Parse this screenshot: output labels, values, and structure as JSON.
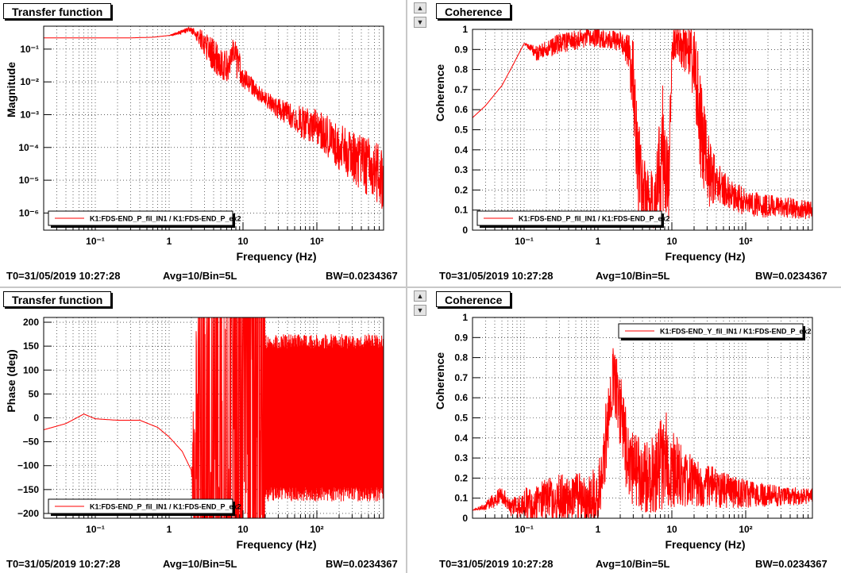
{
  "panels": [
    {
      "title": "Transfer function",
      "t0": "T0=31/05/2019 10:27:28",
      "avg": "Avg=10/Bin=5L",
      "bw": "BW=0.0234367"
    },
    {
      "title": "Coherence",
      "t0": "T0=31/05/2019 10:27:28",
      "avg": "Avg=10/Bin=5L",
      "bw": "BW=0.0234367"
    },
    {
      "title": "Transfer function",
      "t0": "T0=31/05/2019 10:27:28",
      "avg": "Avg=10/Bin=5L",
      "bw": "BW=0.0234367"
    },
    {
      "title": "Coherence",
      "t0": "T0=31/05/2019 10:27:28",
      "avg": "Avg=10/Bin=5L",
      "bw": "BW=0.0234367"
    }
  ],
  "chart_data": [
    {
      "type": "line",
      "title": "Transfer function",
      "xlabel": "Frequency (Hz)",
      "ylabel": "Magnitude",
      "xscale": "log",
      "yscale": "log",
      "xlim": [
        0.02,
        800
      ],
      "ylim": [
        3e-07,
        0.5
      ],
      "grid": true,
      "legend_position": "bottom-left",
      "line_color": "#ff0000",
      "xticks": [
        {
          "value": 0.1,
          "label": "10⁻¹"
        },
        {
          "value": 1,
          "label": "1"
        },
        {
          "value": 10,
          "label": "10"
        },
        {
          "value": 100,
          "label": "10²"
        }
      ],
      "yticks": [
        {
          "value": 1e-06,
          "label": "10⁻⁶"
        },
        {
          "value": 1e-05,
          "label": "10⁻⁵"
        },
        {
          "value": 0.0001,
          "label": "10⁻⁴"
        },
        {
          "value": 0.001,
          "label": "10⁻³"
        },
        {
          "value": 0.01,
          "label": "10⁻²"
        },
        {
          "value": 0.1,
          "label": "10⁻¹"
        }
      ],
      "series": [
        {
          "name": "K1:FDS-END_P_fil_IN1 / K1:FDS-END_P_ex2",
          "x": [
            0.02,
            0.05,
            0.1,
            0.3,
            0.6,
            1.0,
            1.5,
            1.9,
            2.3,
            3.0,
            4.0,
            5.0,
            6.0,
            7.5,
            8.5,
            10,
            15,
            20,
            30,
            50,
            70,
            100,
            150,
            200,
            300,
            500,
            800
          ],
          "values": [
            0.22,
            0.22,
            0.22,
            0.22,
            0.23,
            0.26,
            0.33,
            0.4,
            0.28,
            0.15,
            0.06,
            0.035,
            0.03,
            0.06,
            0.035,
            0.013,
            0.005,
            0.003,
            0.0015,
            0.0008,
            0.0005,
            0.0004,
            0.00018,
            0.0001,
            5e-05,
            2.5e-05,
            1e-05
          ],
          "noise": [
            0,
            0,
            0,
            0,
            0,
            0,
            0.05,
            0.05,
            0.1,
            0.25,
            0.35,
            0.3,
            0.3,
            0.35,
            0.35,
            0.2,
            0.15,
            0.15,
            0.2,
            0.25,
            0.35,
            0.35,
            0.4,
            0.45,
            0.5,
            0.6,
            0.6
          ]
        }
      ]
    },
    {
      "type": "line",
      "title": "Coherence",
      "xlabel": "Frequency (Hz)",
      "ylabel": "Coherence",
      "xscale": "log",
      "yscale": "linear",
      "xlim": [
        0.02,
        800
      ],
      "ylim": [
        0,
        1
      ],
      "grid": true,
      "legend_position": "bottom-left",
      "line_color": "#ff0000",
      "xticks": [
        {
          "value": 0.1,
          "label": "10⁻¹"
        },
        {
          "value": 1,
          "label": "1"
        },
        {
          "value": 10,
          "label": "10"
        },
        {
          "value": 100,
          "label": "10²"
        }
      ],
      "yticks": [
        {
          "value": 0,
          "label": "0"
        },
        {
          "value": 0.1,
          "label": "0.1"
        },
        {
          "value": 0.2,
          "label": "0.2"
        },
        {
          "value": 0.3,
          "label": "0.3"
        },
        {
          "value": 0.4,
          "label": "0.4"
        },
        {
          "value": 0.5,
          "label": "0.5"
        },
        {
          "value": 0.6,
          "label": "0.6"
        },
        {
          "value": 0.7,
          "label": "0.7"
        },
        {
          "value": 0.8,
          "label": "0.8"
        },
        {
          "value": 0.9,
          "label": "0.9"
        },
        {
          "value": 1,
          "label": "1"
        }
      ],
      "series": [
        {
          "name": "K1:FDS-END_P_fil_IN1 / K1:FDS-END_P_ex2",
          "x": [
            0.02,
            0.03,
            0.05,
            0.07,
            0.1,
            0.15,
            0.3,
            0.6,
            1.0,
            1.5,
            2.0,
            2.5,
            3.0,
            3.5,
            4.5,
            6.0,
            7.5,
            9.0,
            10,
            13,
            17,
            20,
            25,
            30,
            40,
            60,
            100,
            200,
            400,
            800
          ],
          "values": [
            0.56,
            0.62,
            0.72,
            0.82,
            0.93,
            0.88,
            0.93,
            0.95,
            0.96,
            0.95,
            0.94,
            0.9,
            0.75,
            0.3,
            0.15,
            0.15,
            0.4,
            0.2,
            0.9,
            0.92,
            0.9,
            0.8,
            0.5,
            0.3,
            0.25,
            0.18,
            0.14,
            0.12,
            0.11,
            0.1
          ],
          "noise": [
            0,
            0,
            0,
            0,
            0,
            0.04,
            0.05,
            0.05,
            0.05,
            0.05,
            0.05,
            0.08,
            0.2,
            0.25,
            0.15,
            0.15,
            0.35,
            0.2,
            0.1,
            0.1,
            0.15,
            0.2,
            0.3,
            0.2,
            0.1,
            0.08,
            0.07,
            0.06,
            0.05,
            0.05
          ]
        }
      ]
    },
    {
      "type": "line",
      "title": "Transfer function",
      "xlabel": "Frequency (Hz)",
      "ylabel": "Phase (deg)",
      "xscale": "log",
      "yscale": "linear",
      "xlim": [
        0.02,
        800
      ],
      "ylim": [
        -210,
        210
      ],
      "grid": true,
      "legend_position": "bottom-left",
      "line_color": "#ff0000",
      "xticks": [
        {
          "value": 0.1,
          "label": "10⁻¹"
        },
        {
          "value": 1,
          "label": "1"
        },
        {
          "value": 10,
          "label": "10"
        },
        {
          "value": 100,
          "label": "10²"
        }
      ],
      "yticks": [
        {
          "value": -200,
          "label": "−200"
        },
        {
          "value": -150,
          "label": "−150"
        },
        {
          "value": -100,
          "label": "−100"
        },
        {
          "value": -50,
          "label": "−50"
        },
        {
          "value": 0,
          "label": "0"
        },
        {
          "value": 50,
          "label": "50"
        },
        {
          "value": 100,
          "label": "100"
        },
        {
          "value": 150,
          "label": "150"
        },
        {
          "value": 200,
          "label": "200"
        }
      ],
      "series": [
        {
          "name": "K1:FDS-END_P_fil_IN1 / K1:FDS-END_P_ex2",
          "x": [
            0.02,
            0.04,
            0.07,
            0.1,
            0.2,
            0.4,
            0.7,
            1.0,
            1.5,
            2.0,
            2.5,
            3.0,
            5.0,
            8.0,
            9.5,
            10,
            12,
            20,
            50,
            100,
            300,
            800
          ],
          "values": [
            -25,
            -12,
            8,
            -2,
            -5,
            -5,
            -20,
            -40,
            -70,
            -110,
            -140,
            -150,
            -150,
            -150,
            -160,
            170,
            170,
            160,
            150,
            140,
            140,
            140
          ],
          "noise": [
            0,
            0,
            0,
            0,
            0,
            0,
            0,
            0,
            0,
            0,
            5,
            10,
            15,
            15,
            10,
            5,
            10,
            20,
            25,
            30,
            30,
            30
          ],
          "wrap_from": 20,
          "wrap_to": 800,
          "wrap_min": -175,
          "wrap_max": 175,
          "burst_from": 3,
          "burst_to": 8
        }
      ]
    },
    {
      "type": "line",
      "title": "Coherence",
      "xlabel": "Frequency (Hz)",
      "ylabel": "Coherence",
      "xscale": "log",
      "yscale": "linear",
      "xlim": [
        0.02,
        800
      ],
      "ylim": [
        0,
        1
      ],
      "grid": true,
      "legend_position": "top-right",
      "line_color": "#ff0000",
      "xticks": [
        {
          "value": 0.1,
          "label": "10⁻¹"
        },
        {
          "value": 1,
          "label": "1"
        },
        {
          "value": 10,
          "label": "10"
        },
        {
          "value": 100,
          "label": "10²"
        }
      ],
      "yticks": [
        {
          "value": 0,
          "label": "0"
        },
        {
          "value": 0.1,
          "label": "0.1"
        },
        {
          "value": 0.2,
          "label": "0.2"
        },
        {
          "value": 0.3,
          "label": "0.3"
        },
        {
          "value": 0.4,
          "label": "0.4"
        },
        {
          "value": 0.5,
          "label": "0.5"
        },
        {
          "value": 0.6,
          "label": "0.6"
        },
        {
          "value": 0.7,
          "label": "0.7"
        },
        {
          "value": 0.8,
          "label": "0.8"
        },
        {
          "value": 0.9,
          "label": "0.9"
        },
        {
          "value": 1,
          "label": "1"
        }
      ],
      "series": [
        {
          "name": "K1:FDS-END_Y_fil_IN1 / K1:FDS-END_P_ex2",
          "x": [
            0.02,
            0.03,
            0.05,
            0.07,
            0.1,
            0.15,
            0.3,
            0.6,
            1.0,
            1.3,
            1.6,
            2.0,
            2.5,
            3.0,
            4.0,
            6.0,
            8.0,
            10,
            15,
            20,
            40,
            100,
            300,
            800
          ],
          "values": [
            0.04,
            0.06,
            0.12,
            0.05,
            0.07,
            0.08,
            0.1,
            0.08,
            0.12,
            0.4,
            0.7,
            0.55,
            0.3,
            0.25,
            0.2,
            0.22,
            0.3,
            0.25,
            0.2,
            0.18,
            0.15,
            0.12,
            0.11,
            0.11
          ],
          "noise": [
            0,
            0.02,
            0.05,
            0.05,
            0.08,
            0.1,
            0.12,
            0.15,
            0.15,
            0.2,
            0.15,
            0.2,
            0.2,
            0.2,
            0.18,
            0.2,
            0.25,
            0.2,
            0.15,
            0.12,
            0.1,
            0.07,
            0.05,
            0.04
          ]
        }
      ]
    }
  ]
}
